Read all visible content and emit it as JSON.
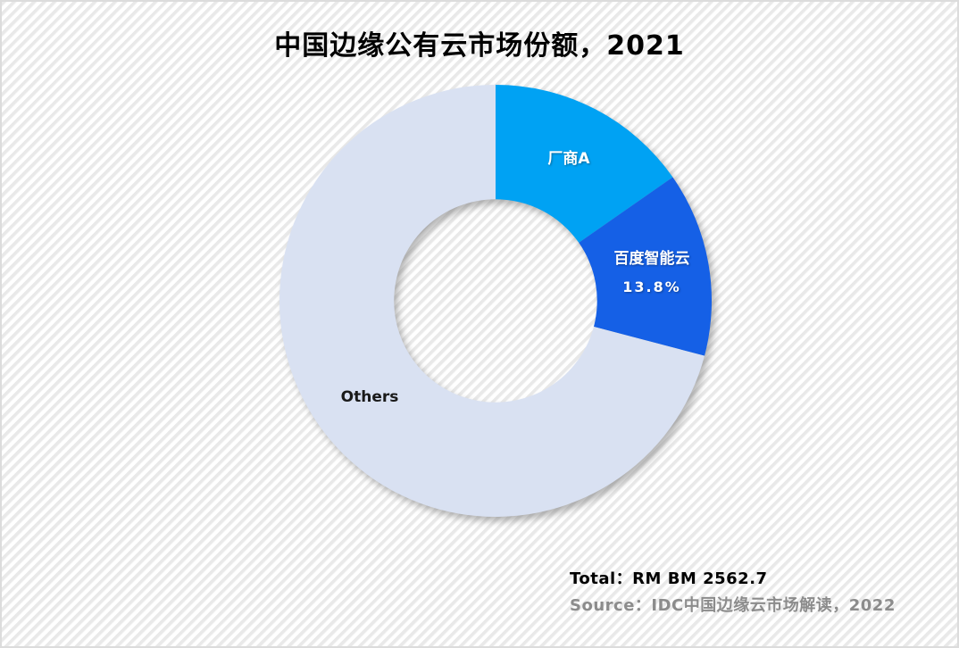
{
  "page": {
    "background_base_color": "#ffffff",
    "background_stripe_color": "#e9e9e9",
    "border_color": "#dcdcdc"
  },
  "chart_data": {
    "type": "pie",
    "subtype": "donut",
    "title": "中国边缘公有云市场份额，2021",
    "legend_position": "none",
    "grid": false,
    "start_angle_deg": 0,
    "clockwise": true,
    "donut_hole_ratio": 0.47,
    "slices": [
      {
        "label": "厂商A",
        "value": 15.3,
        "percent_label": "",
        "color": "#00a2f3",
        "label_color": "#ffffff"
      },
      {
        "label": "百度智能云",
        "value": 13.8,
        "percent_label": "13.8%",
        "color": "#1560e6",
        "label_color": "#ffffff"
      },
      {
        "label": "Others",
        "value": 70.9,
        "percent_label": "",
        "color": "#d9e1f2",
        "label_color": "#1a1a1a"
      }
    ],
    "annotations": {
      "total": "Total：RM BM 2562.7",
      "source": "Source：IDC中国边缘云市场解读，2022"
    }
  }
}
